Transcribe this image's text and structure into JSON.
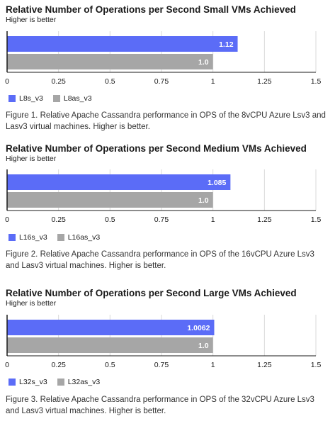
{
  "colors": {
    "primary": "#5b6cf7",
    "secondary": "#a6a6a6",
    "axis": "#1a1a1a",
    "grid": "#d9d9d9"
  },
  "chart_data": [
    {
      "type": "bar",
      "orientation": "horizontal",
      "title": "Relative Number of Operations per Second Small VMs Achieved",
      "subtitle": "Higher is better",
      "xlim": [
        0,
        1.5
      ],
      "x_ticks": [
        0,
        0.25,
        0.5,
        0.75,
        1,
        1.25,
        1.5
      ],
      "x_tick_labels": [
        "0",
        "0.25",
        "0.5",
        "0.75",
        "1",
        "1.25",
        "1.5"
      ],
      "legend_placement": "bottom-left",
      "series": [
        {
          "name": "L8s_v3",
          "value": 1.12,
          "label": "1.12",
          "color": "#5b6cf7"
        },
        {
          "name": "L8as_v3",
          "value": 1.0,
          "label": "1.0",
          "color": "#a6a6a6"
        }
      ],
      "caption": "Figure 1. Relative Apache Cassandra performance in OPS of the 8vCPU Azure Lsv3 and Lasv3 virtual machines. Higher is better."
    },
    {
      "type": "bar",
      "orientation": "horizontal",
      "title": "Relative Number of Operations per Second Medium VMs Achieved",
      "subtitle": "Higher is better",
      "xlim": [
        0,
        1.5
      ],
      "x_ticks": [
        0,
        0.25,
        0.5,
        0.75,
        1,
        1.25,
        1.5
      ],
      "x_tick_labels": [
        "0",
        "0.25",
        "0.5",
        "0.75",
        "1",
        "1.25",
        "1.5"
      ],
      "legend_placement": "bottom-left",
      "series": [
        {
          "name": "L16s_v3",
          "value": 1.085,
          "label": "1.085",
          "color": "#5b6cf7"
        },
        {
          "name": "L16as_v3",
          "value": 1.0,
          "label": "1.0",
          "color": "#a6a6a6"
        }
      ],
      "caption": "Figure 2. Relative Apache Cassandra performance in OPS of the 16vCPU Azure Lsv3 and Lasv3 virtual machines. Higher is better."
    },
    {
      "type": "bar",
      "orientation": "horizontal",
      "title": "Relative Number of Operations per Second Large VMs Achieved",
      "subtitle": "Higher is better",
      "xlim": [
        0,
        1.5
      ],
      "x_ticks": [
        0,
        0.25,
        0.5,
        0.75,
        1,
        1.25,
        1.5
      ],
      "x_tick_labels": [
        "0",
        "0.25",
        "0.5",
        "0.75",
        "1",
        "1.25",
        "1.5"
      ],
      "legend_placement": "bottom-left",
      "series": [
        {
          "name": "L32s_v3",
          "value": 1.0062,
          "label": "1.0062",
          "color": "#5b6cf7"
        },
        {
          "name": "L32as_v3",
          "value": 1.0,
          "label": "1.0",
          "color": "#a6a6a6"
        }
      ],
      "caption": "Figure 3. Relative Apache Cassandra performance in OPS of the 32vCPU Azure Lsv3 and Lasv3 virtual machines. Higher is better."
    }
  ]
}
